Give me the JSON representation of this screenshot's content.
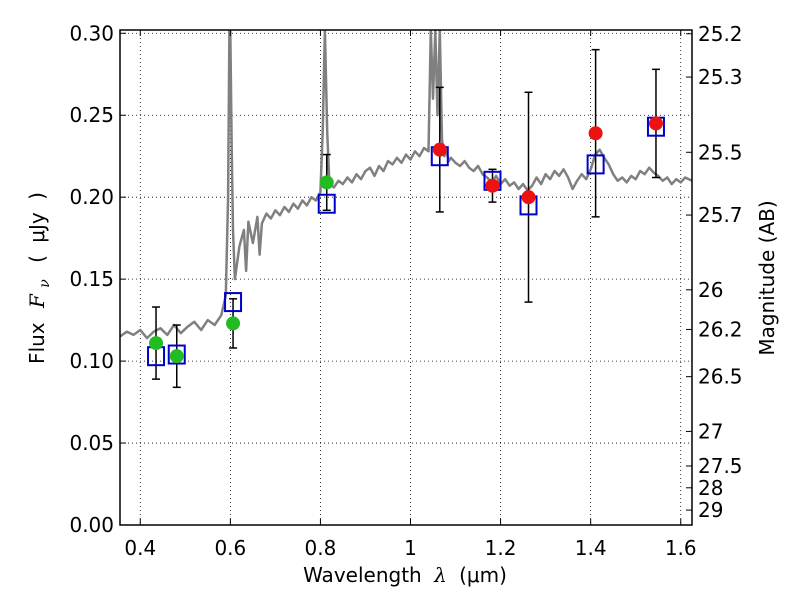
{
  "chart_data": {
    "type": "scatter",
    "title": "",
    "xlabel": "Wavelength",
    "xlabel_symbol": "λ",
    "xlabel_unit": "(μm)",
    "ylabel": "Flux",
    "ylabel_symbol": "F",
    "ylabel_subscript": "ν",
    "ylabel_unit_open": "(",
    "ylabel_unit": "μJy",
    "ylabel_unit_close": ")",
    "y2label": "Magnitude (AB)",
    "xlim": [
      0.355,
      1.625
    ],
    "ylim": [
      0.0,
      0.302
    ],
    "grid": true,
    "x_ticks": [
      0.4,
      0.6,
      0.8,
      1.0,
      1.2,
      1.4,
      1.6
    ],
    "x_tick_labels": [
      "0.4",
      "0.6",
      "0.8",
      "1",
      "1.2",
      "1.4",
      "1.6"
    ],
    "y_ticks": [
      0.0,
      0.05,
      0.1,
      0.15,
      0.2,
      0.25,
      0.3
    ],
    "y_tick_labels": [
      "0.00",
      "0.05",
      "0.10",
      "0.15",
      "0.20",
      "0.25",
      "0.30"
    ],
    "y2_ticks": [
      {
        "label": "25.2",
        "flux": 0.2997
      },
      {
        "label": "25.3",
        "flux": 0.2733
      },
      {
        "label": "25.5",
        "flux": 0.2274
      },
      {
        "label": "25.7",
        "flux": 0.1891
      },
      {
        "label": "26",
        "flux": 0.1435
      },
      {
        "label": "26.2",
        "flux": 0.1193
      },
      {
        "label": "26.5",
        "flux": 0.0905
      },
      {
        "label": "27",
        "flux": 0.0571
      },
      {
        "label": "27.5",
        "flux": 0.036
      },
      {
        "label": "28",
        "flux": 0.0227
      },
      {
        "label": "29",
        "flux": 0.0091
      }
    ],
    "series": [
      {
        "name": "spectrum",
        "kind": "line",
        "color": "#808080",
        "x": [
          0.355,
          0.37,
          0.385,
          0.4,
          0.415,
          0.43,
          0.445,
          0.46,
          0.475,
          0.49,
          0.505,
          0.52,
          0.535,
          0.55,
          0.565,
          0.58,
          0.59,
          0.595,
          0.598,
          0.6,
          0.603,
          0.606,
          0.61,
          0.62,
          0.63,
          0.635,
          0.64,
          0.65,
          0.66,
          0.665,
          0.67,
          0.68,
          0.69,
          0.7,
          0.71,
          0.72,
          0.73,
          0.74,
          0.75,
          0.76,
          0.77,
          0.78,
          0.79,
          0.8,
          0.805,
          0.81,
          0.815,
          0.82,
          0.83,
          0.84,
          0.85,
          0.86,
          0.87,
          0.88,
          0.89,
          0.9,
          0.91,
          0.92,
          0.93,
          0.94,
          0.95,
          0.96,
          0.97,
          0.98,
          0.99,
          1.0,
          1.01,
          1.02,
          1.03,
          1.04,
          1.045,
          1.05,
          1.055,
          1.06,
          1.065,
          1.07,
          1.075,
          1.08,
          1.085,
          1.09,
          1.1,
          1.11,
          1.12,
          1.13,
          1.14,
          1.15,
          1.16,
          1.17,
          1.18,
          1.19,
          1.2,
          1.21,
          1.22,
          1.23,
          1.24,
          1.25,
          1.26,
          1.27,
          1.28,
          1.29,
          1.3,
          1.31,
          1.32,
          1.33,
          1.34,
          1.35,
          1.36,
          1.37,
          1.38,
          1.39,
          1.4,
          1.41,
          1.42,
          1.43,
          1.44,
          1.45,
          1.46,
          1.47,
          1.48,
          1.49,
          1.5,
          1.51,
          1.52,
          1.53,
          1.54,
          1.55,
          1.56,
          1.57,
          1.58,
          1.59,
          1.6,
          1.61,
          1.625
        ],
        "y": [
          0.115,
          0.118,
          0.116,
          0.119,
          0.114,
          0.118,
          0.12,
          0.116,
          0.122,
          0.117,
          0.121,
          0.124,
          0.119,
          0.125,
          0.122,
          0.128,
          0.14,
          0.2,
          0.302,
          0.302,
          0.23,
          0.18,
          0.15,
          0.17,
          0.18,
          0.155,
          0.185,
          0.172,
          0.188,
          0.165,
          0.184,
          0.19,
          0.187,
          0.192,
          0.189,
          0.194,
          0.191,
          0.196,
          0.193,
          0.198,
          0.195,
          0.2,
          0.198,
          0.203,
          0.24,
          0.302,
          0.24,
          0.208,
          0.206,
          0.21,
          0.208,
          0.212,
          0.209,
          0.214,
          0.211,
          0.216,
          0.218,
          0.213,
          0.219,
          0.216,
          0.222,
          0.22,
          0.224,
          0.221,
          0.226,
          0.223,
          0.228,
          0.225,
          0.23,
          0.228,
          0.302,
          0.26,
          0.302,
          0.25,
          0.302,
          0.235,
          0.225,
          0.228,
          0.222,
          0.224,
          0.221,
          0.219,
          0.222,
          0.218,
          0.216,
          0.219,
          0.214,
          0.212,
          0.209,
          0.213,
          0.208,
          0.211,
          0.207,
          0.209,
          0.205,
          0.208,
          0.204,
          0.207,
          0.212,
          0.208,
          0.214,
          0.211,
          0.216,
          0.213,
          0.217,
          0.212,
          0.205,
          0.21,
          0.214,
          0.211,
          0.217,
          0.226,
          0.229,
          0.224,
          0.22,
          0.214,
          0.21,
          0.212,
          0.209,
          0.213,
          0.211,
          0.216,
          0.214,
          0.218,
          0.215,
          0.213,
          0.21,
          0.212,
          0.208,
          0.211,
          0.209,
          0.212,
          0.21
        ]
      },
      {
        "name": "model-photometry",
        "kind": "open-square",
        "color": "#0000cc",
        "x": [
          0.435,
          0.481,
          0.606,
          0.814,
          1.065,
          1.182,
          1.262,
          1.411,
          1.545
        ],
        "y": [
          0.103,
          0.104,
          0.136,
          0.196,
          0.225,
          0.21,
          0.195,
          0.22,
          0.243
        ]
      },
      {
        "name": "optical-observed",
        "kind": "filled-circle",
        "color": "#22bb22",
        "x": [
          0.435,
          0.481,
          0.606,
          0.814
        ],
        "y": [
          0.111,
          0.103,
          0.123,
          0.209
        ],
        "yerr": [
          0.022,
          0.019,
          0.015,
          0.017
        ]
      },
      {
        "name": "nir-observed",
        "kind": "filled-circle",
        "color": "#ee1111",
        "x": [
          1.065,
          1.182,
          1.262,
          1.411,
          1.545
        ],
        "y": [
          0.229,
          0.207,
          0.2,
          0.239,
          0.245
        ],
        "yerr": [
          0.038,
          0.01,
          0.064,
          0.051,
          0.033
        ]
      }
    ]
  }
}
